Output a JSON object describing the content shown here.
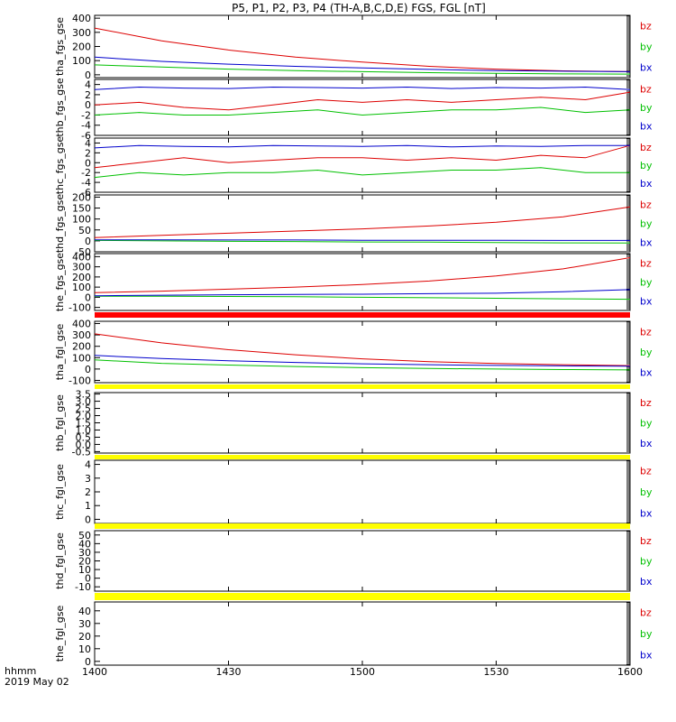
{
  "title": "P5, P1, P2, P3, P4 (TH-A,B,C,D,E) FGS, FGL [nT]",
  "xaxis": {
    "label_line1": "hhmm",
    "label_line2": "2019 May 02",
    "ticks": [
      "1400",
      "1430",
      "1500",
      "1530",
      "1600"
    ],
    "range_min": [
      0,
      120
    ]
  },
  "components": [
    {
      "name": "bz",
      "color": "#dd0000"
    },
    {
      "name": "by",
      "color": "#00c000"
    },
    {
      "name": "bx",
      "color": "#0000cc"
    }
  ],
  "chart_data": [
    {
      "type": "line",
      "ylabel": "tha_fgs_gse",
      "ylim": [
        -20,
        420
      ],
      "yticks": [
        "0",
        "100",
        "200",
        "300",
        "400"
      ],
      "ytick_values": [
        0,
        100,
        200,
        300,
        400
      ],
      "x": [
        0,
        15,
        30,
        45,
        60,
        75,
        90,
        105,
        120
      ],
      "series": [
        {
          "name": "bz",
          "values": [
            330,
            240,
            175,
            125,
            90,
            60,
            40,
            28,
            22
          ]
        },
        {
          "name": "by",
          "values": [
            70,
            55,
            40,
            30,
            22,
            15,
            10,
            6,
            5
          ]
        },
        {
          "name": "bx",
          "values": [
            125,
            95,
            75,
            60,
            48,
            38,
            30,
            25,
            22
          ]
        }
      ]
    },
    {
      "type": "line",
      "ylabel": "thb_fgs_gse",
      "ylim": [
        -6,
        5
      ],
      "yticks": [
        "-6",
        "-4",
        "-2",
        "0",
        "2",
        "4"
      ],
      "ytick_values": [
        -6,
        -4,
        -2,
        0,
        2,
        4
      ],
      "x": [
        0,
        10,
        20,
        30,
        40,
        50,
        60,
        70,
        80,
        90,
        100,
        110,
        120
      ],
      "series": [
        {
          "name": "bz",
          "values": [
            0,
            0.5,
            -0.5,
            -1,
            0,
            1,
            0.5,
            1,
            0.5,
            1,
            1.5,
            1,
            2.5
          ]
        },
        {
          "name": "by",
          "values": [
            -2,
            -1.5,
            -2,
            -2,
            -1.5,
            -1,
            -2,
            -1.5,
            -1,
            -1,
            -0.5,
            -1.5,
            -1
          ]
        },
        {
          "name": "bx",
          "values": [
            3,
            3.5,
            3.3,
            3.2,
            3.5,
            3.4,
            3.3,
            3.5,
            3.2,
            3.4,
            3.3,
            3.5,
            3
          ]
        }
      ]
    },
    {
      "type": "line",
      "ylabel": "thc_fgs_gse",
      "ylim": [
        -6,
        5
      ],
      "yticks": [
        "-6",
        "-4",
        "-2",
        "0",
        "2",
        "4"
      ],
      "ytick_values": [
        -6,
        -4,
        -2,
        0,
        2,
        4
      ],
      "x": [
        0,
        10,
        20,
        30,
        40,
        50,
        60,
        70,
        80,
        90,
        100,
        110,
        120
      ],
      "series": [
        {
          "name": "bz",
          "values": [
            -1,
            0,
            1,
            0,
            0.5,
            1,
            1,
            0.5,
            1,
            0.5,
            1.5,
            1,
            3.5
          ]
        },
        {
          "name": "by",
          "values": [
            -3,
            -2,
            -2.5,
            -2,
            -2,
            -1.5,
            -2.5,
            -2,
            -1.5,
            -1.5,
            -1,
            -2,
            -2
          ]
        },
        {
          "name": "bx",
          "values": [
            3,
            3.5,
            3.3,
            3.2,
            3.5,
            3.4,
            3.3,
            3.5,
            3.2,
            3.4,
            3.3,
            3.5,
            3.5
          ]
        }
      ]
    },
    {
      "type": "line",
      "ylabel": "thd_fgs_gse",
      "ylim": [
        -50,
        210
      ],
      "yticks": [
        "-50",
        "0",
        "50",
        "100",
        "150",
        "200"
      ],
      "ytick_values": [
        -50,
        0,
        50,
        100,
        150,
        200
      ],
      "x": [
        0,
        15,
        30,
        45,
        60,
        75,
        90,
        105,
        120
      ],
      "series": [
        {
          "name": "bz",
          "values": [
            15,
            25,
            35,
            45,
            55,
            68,
            85,
            110,
            155
          ]
        },
        {
          "name": "by",
          "values": [
            2,
            0,
            -2,
            -3,
            -5,
            -6,
            -8,
            -9,
            -10
          ]
        },
        {
          "name": "bx",
          "values": [
            5,
            5,
            4,
            4,
            3,
            3,
            3,
            2,
            2
          ]
        }
      ]
    },
    {
      "type": "line",
      "ylabel": "the_fgs_gse",
      "ylim": [
        -130,
        430
      ],
      "yticks": [
        "-100",
        "0",
        "100",
        "200",
        "300",
        "400"
      ],
      "ytick_values": [
        -100,
        0,
        100,
        200,
        300,
        400
      ],
      "x": [
        0,
        15,
        30,
        45,
        60,
        75,
        90,
        105,
        120
      ],
      "series": [
        {
          "name": "bz",
          "values": [
            45,
            60,
            80,
            100,
            125,
            160,
            210,
            280,
            390
          ]
        },
        {
          "name": "by",
          "values": [
            10,
            10,
            8,
            5,
            0,
            -5,
            -10,
            -15,
            -20
          ]
        },
        {
          "name": "bx",
          "values": [
            15,
            20,
            25,
            28,
            30,
            35,
            40,
            55,
            75
          ]
        }
      ]
    },
    {
      "type": "line",
      "ylabel": "tha_fgl_gse",
      "ylim": [
        -120,
        420
      ],
      "yticks": [
        "-100",
        "0",
        "100",
        "200",
        "300",
        "400"
      ],
      "ytick_values": [
        -100,
        0,
        100,
        200,
        300,
        400
      ],
      "x": [
        0,
        15,
        30,
        45,
        60,
        75,
        90,
        105,
        120
      ],
      "series": [
        {
          "name": "bz",
          "values": [
            310,
            230,
            170,
            125,
            90,
            65,
            48,
            38,
            30
          ]
        },
        {
          "name": "by",
          "values": [
            80,
            50,
            35,
            22,
            12,
            5,
            0,
            -5,
            -8
          ]
        },
        {
          "name": "bx",
          "values": [
            120,
            92,
            72,
            58,
            46,
            38,
            32,
            28,
            25
          ]
        }
      ]
    },
    {
      "type": "line",
      "ylabel": "thb_fgl_gse",
      "ylim": [
        -0.6,
        3.6
      ],
      "yticks": [
        "-0.5",
        "0.0",
        "0.5",
        "1.0",
        "1.5",
        "2.0",
        "2.5",
        "3.0",
        "3.5"
      ],
      "ytick_values": [
        -0.5,
        0,
        0.5,
        1,
        1.5,
        2,
        2.5,
        3,
        3.5
      ],
      "x": [],
      "series": []
    },
    {
      "type": "line",
      "ylabel": "thc_fgl_gse",
      "ylim": [
        -0.3,
        4.3
      ],
      "yticks": [
        "0",
        "1",
        "2",
        "3",
        "4"
      ],
      "ytick_values": [
        0,
        1,
        2,
        3,
        4
      ],
      "x": [],
      "series": []
    },
    {
      "type": "line",
      "ylabel": "thd_fgl_gse",
      "ylim": [
        -15,
        55
      ],
      "yticks": [
        "-10",
        "0",
        "10",
        "20",
        "30",
        "40",
        "50"
      ],
      "ytick_values": [
        -10,
        0,
        10,
        20,
        30,
        40,
        50
      ],
      "x": [],
      "series": []
    },
    {
      "type": "line",
      "ylabel": "the_fgl_gse",
      "ylim": [
        -3,
        47
      ],
      "yticks": [
        "0",
        "10",
        "20",
        "30",
        "40"
      ],
      "ytick_values": [
        0,
        10,
        20,
        30,
        40
      ],
      "x": [],
      "series": []
    }
  ]
}
